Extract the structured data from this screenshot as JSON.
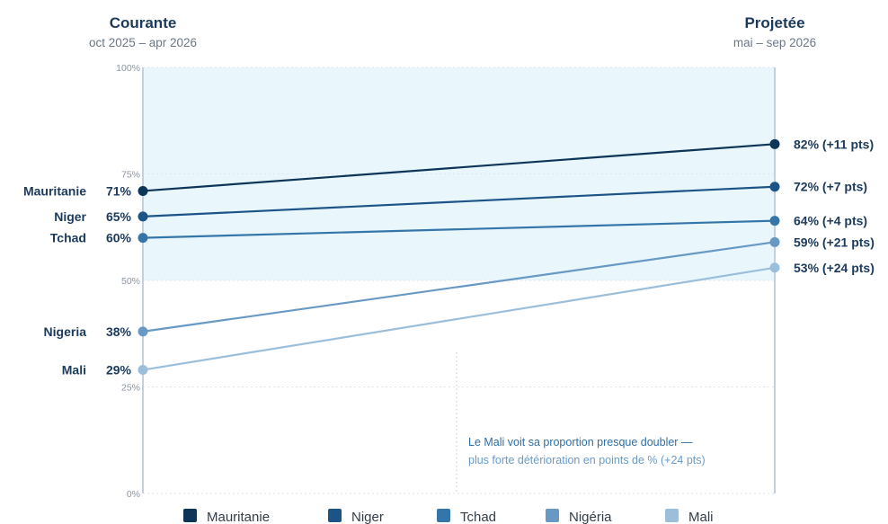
{
  "chart_data": {
    "type": "line",
    "columns": [
      {
        "title": "Courante",
        "subtitle": "oct 2025 – apr 2026"
      },
      {
        "title": "Projetée",
        "subtitle": "mai – sep 2026"
      }
    ],
    "yticks": [
      "100%",
      "75%",
      "50%",
      "25%",
      "0%"
    ],
    "ytick_values": [
      100,
      75,
      50,
      25,
      0
    ],
    "ylim": [
      0,
      100
    ],
    "band": [
      50,
      100
    ],
    "series": [
      {
        "name": "Mauritanie",
        "values": [
          71,
          82
        ],
        "left_label": "Mauritanie",
        "left_value": "71%",
        "right_label": "82% (+11 pts)",
        "color": "#0d3558"
      },
      {
        "name": "Niger",
        "values": [
          65,
          72
        ],
        "left_label": "Niger",
        "left_value": "65%",
        "right_label": "72% (+7 pts)",
        "color": "#1d5488"
      },
      {
        "name": "Tchad",
        "values": [
          60,
          64
        ],
        "left_label": "Tchad",
        "left_value": "60%",
        "right_label": "64% (+4 pts)",
        "color": "#3576aa"
      },
      {
        "name": "Nigéria",
        "values": [
          38,
          59
        ],
        "left_label": "Nigeria",
        "left_value": "38%",
        "right_label": "59% (+21 pts)",
        "color": "#6898c4"
      },
      {
        "name": "Mali",
        "values": [
          29,
          53
        ],
        "left_label": "Mali",
        "left_value": "29%",
        "right_label": "53% (+24 pts)",
        "color": "#9bbedb"
      }
    ],
    "annotation": {
      "line1": "Le Mali voit sa proportion presque doubler —",
      "line2": "plus forte détérioration en points de % (+24 pts)"
    },
    "colors": {
      "band": "#e9f7fd",
      "axis": "#c5d0dc",
      "grid": "#dde5ee",
      "annot_strong": "#2f6ea5",
      "annot_light": "#6a9bc7"
    }
  }
}
